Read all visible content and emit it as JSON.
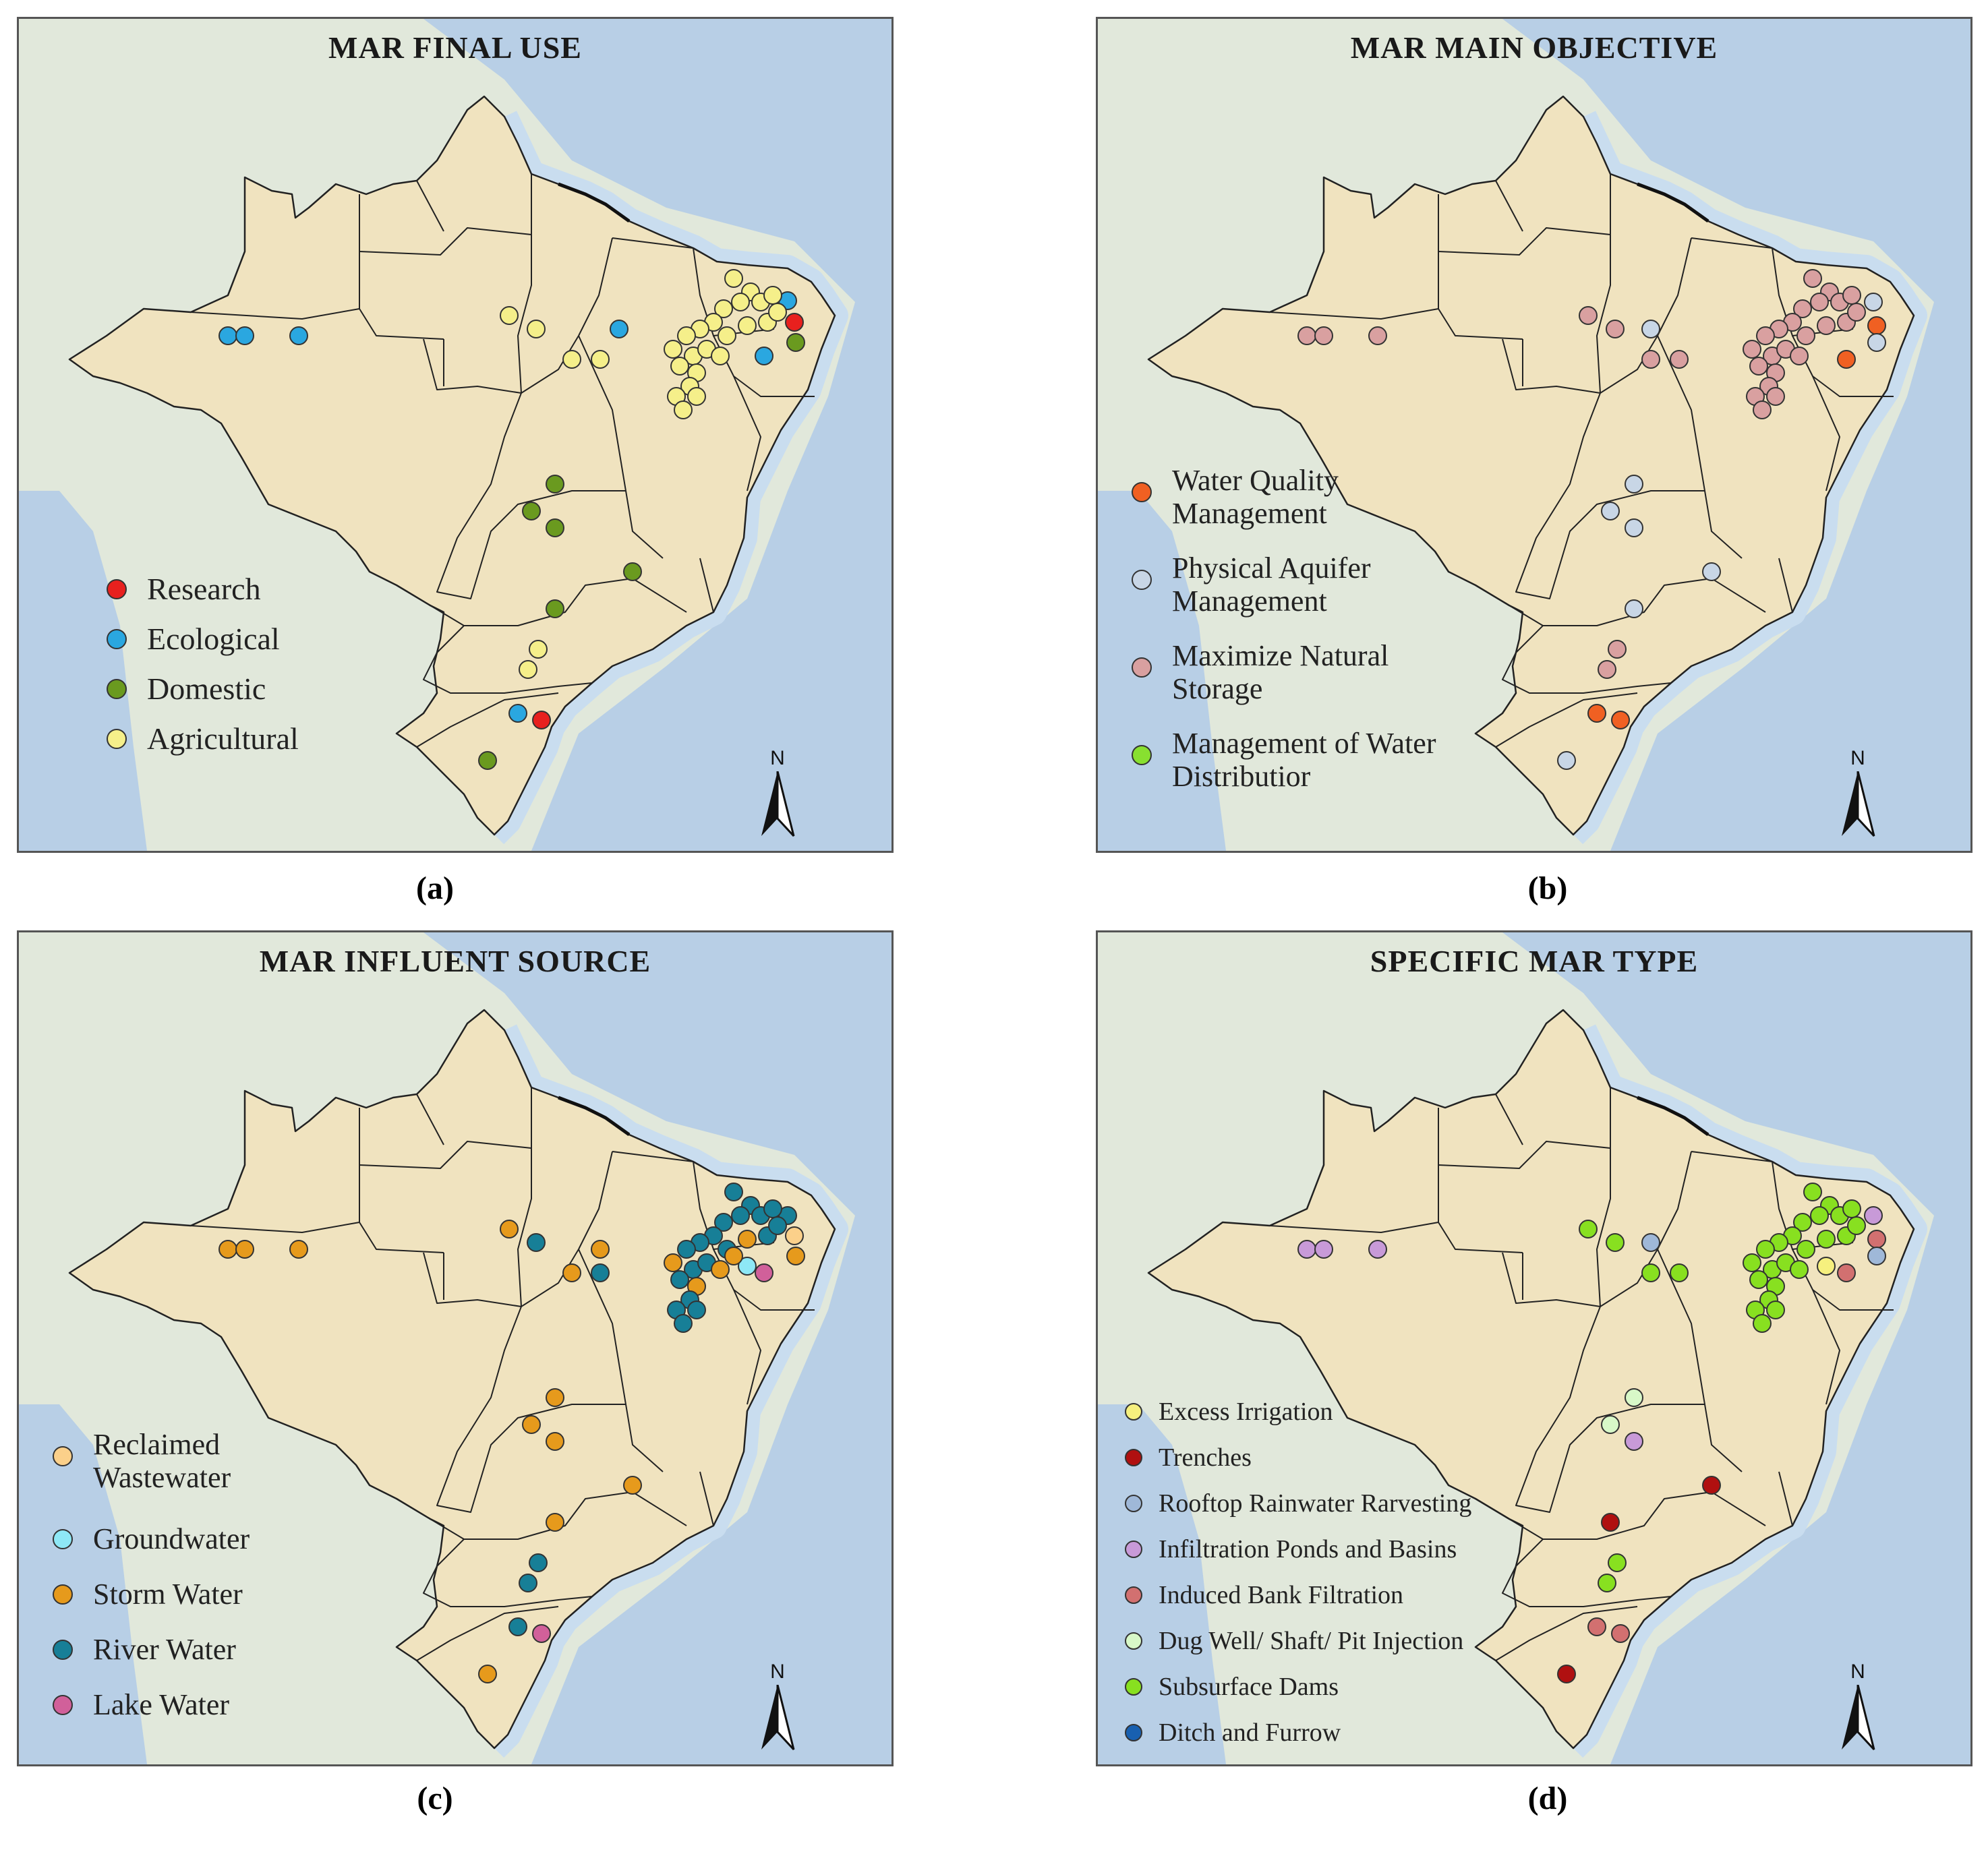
{
  "panels": [
    {
      "title": "MAR FINAL USE",
      "caption": "(a)",
      "legend": [
        {
          "label": "Research",
          "color": "#e8201e"
        },
        {
          "label": "Ecological",
          "color": "#2aa7e0"
        },
        {
          "label": "Domestic",
          "color": "#6a9a1f"
        },
        {
          "label": "Agricultural",
          "color": "#f5ef8a"
        }
      ],
      "north_label": "N"
    },
    {
      "title": "MAR MAIN OBJECTIVE",
      "caption": "(b)",
      "legend": [
        {
          "label": "Water Quality\nManagement",
          "color": "#f06022"
        },
        {
          "label": "Physical Aquifer\nManagement",
          "color": "#c8d6e6"
        },
        {
          "label": "Maximize Natural\nStorage",
          "color": "#d9a0a0"
        },
        {
          "label": "Management of Water\nDistributior",
          "color": "#88e030"
        }
      ],
      "north_label": "N"
    },
    {
      "title": "MAR INFLUENT SOURCE",
      "caption": "(c)",
      "legend": [
        {
          "label": "Reclaimed\nWastewater",
          "color": "#fbd08a"
        },
        {
          "label": "Groundwater",
          "color": "#8ee8f6"
        },
        {
          "label": "Storm Water",
          "color": "#e69a1c"
        },
        {
          "label": "River Water",
          "color": "#177f97"
        },
        {
          "label": "Lake Water",
          "color": "#d1609a"
        }
      ],
      "north_label": "N"
    },
    {
      "title": "SPECIFIC MAR TYPE",
      "caption": "(d)",
      "legend": [
        {
          "label": "Excess Irrigation",
          "color": "#f6f07e"
        },
        {
          "label": "Trenches",
          "color": "#b01010"
        },
        {
          "label": "Rooftop Rainwater Rarvesting",
          "color": "#9fb8d8"
        },
        {
          "label": "Infiltration Ponds and Basins",
          "color": "#c89ad8"
        },
        {
          "label": "Induced Bank Filtration",
          "color": "#d27070"
        },
        {
          "label": "Dug Well/ Shaft/ Pit Injection",
          "color": "#d8f8c8"
        },
        {
          "label": "Subsurface Dams",
          "color": "#88e020"
        },
        {
          "label": "Ditch and Furrow",
          "color": "#1860b0"
        }
      ],
      "north_label": "N"
    }
  ],
  "colors": {
    "land": "#f0e3bf",
    "state_border": "#222222",
    "ocean": "#b8cfe6",
    "continent": "#e1e8db"
  }
}
